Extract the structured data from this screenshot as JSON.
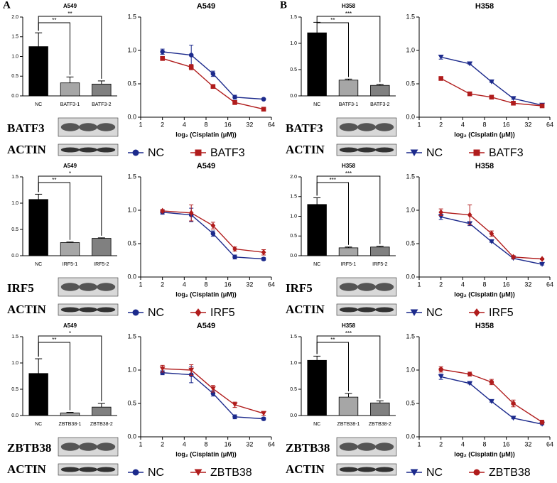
{
  "panel_labels": [
    "A",
    "B"
  ],
  "blots": [
    [
      "BATF3",
      "ACTIN"
    ],
    [
      "IRF5",
      "ACTIN"
    ],
    [
      "ZBTB38",
      "ACTIN"
    ],
    [
      "BATF3",
      "ACTIN"
    ],
    [
      "IRF5",
      "ACTIN"
    ],
    [
      "ZBTB38",
      "ACTIN"
    ]
  ],
  "chart_data": [
    {
      "type": "bar",
      "title": "A549",
      "categories": [
        "NC",
        "BATF3-1",
        "BATF3-2"
      ],
      "values": [
        1.25,
        0.33,
        0.3
      ],
      "errors": [
        0.35,
        0.15,
        0.08
      ],
      "colors": [
        "#000000",
        "#a6a6a6",
        "#808080"
      ],
      "significance": [
        "**",
        "**"
      ],
      "ylim": [
        0,
        2
      ],
      "yticks": [
        {
          "value": 0,
          "label": "0.0"
        },
        0.5,
        {
          "value": 1,
          "label": "1.0"
        },
        1.5,
        {
          "value": 2,
          "label": "2.0"
        }
      ]
    },
    {
      "type": "line",
      "title": "A549",
      "xlabel": "log₂ (Cisplatin (μM))",
      "x": [
        2,
        5,
        10,
        20,
        50
      ],
      "log_base": 2,
      "xlim": [
        1,
        64
      ],
      "xticks": [
        1,
        2,
        4,
        8,
        16,
        32,
        64
      ],
      "ylim": [
        0,
        1.5
      ],
      "yticks": [
        {
          "value": 0,
          "label": "0.0"
        },
        0.5,
        {
          "value": 1,
          "label": "1.0"
        },
        1.5
      ],
      "series": [
        {
          "name": "NC",
          "color": "#1c2a8c",
          "marker": "circle",
          "values": [
            0.98,
            0.93,
            0.65,
            0.3,
            0.27
          ],
          "errors": [
            0.04,
            0.15,
            0.04,
            0.03,
            0.01
          ]
        },
        {
          "name": "BATF3",
          "color": "#b01c1c",
          "marker": "square",
          "values": [
            0.88,
            0.75,
            0.46,
            0.22,
            0.12
          ],
          "errors": [
            0.03,
            0.04,
            0.02,
            0.03,
            0.01
          ]
        }
      ]
    },
    {
      "type": "bar",
      "title": "A549",
      "categories": [
        "NC",
        "IRF5-1",
        "IRF5-2"
      ],
      "values": [
        1.07,
        0.25,
        0.33
      ],
      "errors": [
        0.1,
        0.01,
        0.01
      ],
      "colors": [
        "#000000",
        "#a6a6a6",
        "#808080"
      ],
      "significance": [
        "**",
        "*"
      ],
      "ylim": [
        0,
        1.5
      ],
      "yticks": [
        {
          "value": 0,
          "label": "0.0"
        },
        0.5,
        {
          "value": 1,
          "label": "1.0"
        },
        1.5
      ]
    },
    {
      "type": "line",
      "title": "A549",
      "xlabel": "log₂ (Cisplatin (μM))",
      "x": [
        2,
        5,
        10,
        20,
        50
      ],
      "log_base": 2,
      "xlim": [
        1,
        64
      ],
      "xticks": [
        1,
        2,
        4,
        8,
        16,
        32,
        64
      ],
      "ylim": [
        0,
        1.5
      ],
      "yticks": [
        {
          "value": 0,
          "label": "0.0"
        },
        0.5,
        {
          "value": 1,
          "label": "1.0"
        },
        1.5
      ],
      "series": [
        {
          "name": "NC",
          "color": "#1c2a8c",
          "marker": "circle",
          "values": [
            0.97,
            0.93,
            0.65,
            0.3,
            0.27
          ],
          "errors": [
            0.03,
            0.1,
            0.04,
            0.03,
            0.02
          ]
        },
        {
          "name": "IRF5",
          "color": "#b01c1c",
          "marker": "diamond",
          "values": [
            0.99,
            0.96,
            0.77,
            0.42,
            0.37
          ],
          "errors": [
            0.02,
            0.12,
            0.05,
            0.03,
            0.04
          ]
        }
      ]
    },
    {
      "type": "bar",
      "title": "A549",
      "categories": [
        "NC",
        "ZBTB38-1",
        "ZBTB38-2"
      ],
      "values": [
        0.8,
        0.05,
        0.16
      ],
      "errors": [
        0.28,
        0.01,
        0.07
      ],
      "colors": [
        "#000000",
        "#a6a6a6",
        "#808080"
      ],
      "significance": [
        "**",
        "*"
      ],
      "ylim": [
        0,
        1.5
      ],
      "yticks": [
        {
          "value": 0,
          "label": "0.0"
        },
        0.5,
        {
          "value": 1,
          "label": "1.0"
        },
        1.5
      ]
    },
    {
      "type": "line",
      "title": "A549",
      "xlabel": "log₂ (Cisplatin (μM))",
      "x": [
        2,
        5,
        10,
        20,
        50
      ],
      "log_base": 2,
      "xlim": [
        1,
        64
      ],
      "xticks": [
        1,
        2,
        4,
        8,
        16,
        32,
        64
      ],
      "ylim": [
        0,
        1.5
      ],
      "yticks": [
        {
          "value": 0,
          "label": "0.0"
        },
        0.5,
        {
          "value": 1,
          "label": "1.0"
        },
        1.5
      ],
      "series": [
        {
          "name": "NC",
          "color": "#1c2a8c",
          "marker": "circle",
          "values": [
            0.96,
            0.93,
            0.65,
            0.3,
            0.27
          ],
          "errors": [
            0.03,
            0.12,
            0.04,
            0.03,
            0.02
          ]
        },
        {
          "name": "ZBTB38",
          "color": "#b01c1c",
          "marker": "triangle-down",
          "values": [
            1.02,
            1.0,
            0.72,
            0.48,
            0.35
          ],
          "errors": [
            0.05,
            0.08,
            0.05,
            0.04,
            0.03
          ]
        }
      ]
    },
    {
      "type": "bar",
      "title": "H358",
      "categories": [
        "NC",
        "BATF3-1",
        "BATF3-2"
      ],
      "values": [
        1.2,
        0.3,
        0.2
      ],
      "errors": [
        0.2,
        0.02,
        0.02
      ],
      "colors": [
        "#000000",
        "#a6a6a6",
        "#808080"
      ],
      "significance": [
        "**",
        "***"
      ],
      "ylim": [
        0,
        1.5
      ],
      "yticks": [
        {
          "value": 0,
          "label": "0.0"
        },
        0.5,
        {
          "value": 1,
          "label": "1.0"
        },
        1.5
      ]
    },
    {
      "type": "line",
      "title": "H358",
      "xlabel": "log₂ (Cisplatin (μM))",
      "x": [
        2,
        5,
        10,
        20,
        50
      ],
      "log_base": 2,
      "xlim": [
        1,
        64
      ],
      "xticks": [
        1,
        2,
        4,
        8,
        16,
        32,
        64
      ],
      "ylim": [
        0,
        1.5
      ],
      "yticks": [
        {
          "value": 0,
          "label": "0.0"
        },
        0.5,
        {
          "value": 1,
          "label": "1.0"
        },
        1.5
      ],
      "series": [
        {
          "name": "NC",
          "color": "#1c2a8c",
          "marker": "triangle-down",
          "values": [
            0.9,
            0.8,
            0.53,
            0.28,
            0.18
          ],
          "errors": [
            0.03,
            0.01,
            0.01,
            0.01,
            0.01
          ]
        },
        {
          "name": "BATF3",
          "color": "#b01c1c",
          "marker": "square",
          "values": [
            0.58,
            0.35,
            0.3,
            0.21,
            0.17
          ],
          "errors": [
            0.02,
            0.01,
            0.01,
            0.01,
            0.01
          ]
        }
      ]
    },
    {
      "type": "bar",
      "title": "H358",
      "categories": [
        "NC",
        "IRF5-1",
        "IRF5-2"
      ],
      "values": [
        1.3,
        0.2,
        0.22
      ],
      "errors": [
        0.17,
        0.02,
        0.02
      ],
      "colors": [
        "#000000",
        "#a6a6a6",
        "#808080"
      ],
      "significance": [
        "***",
        "***"
      ],
      "ylim": [
        0,
        2
      ],
      "yticks": [
        {
          "value": 0,
          "label": "0.0"
        },
        0.5,
        {
          "value": 1,
          "label": "1.0"
        },
        1.5,
        {
          "value": 2,
          "label": "2.0"
        }
      ]
    },
    {
      "type": "line",
      "title": "H358",
      "xlabel": "log₂ (Cisplatin (μM))",
      "x": [
        2,
        5,
        10,
        20,
        50
      ],
      "log_base": 2,
      "xlim": [
        1,
        64
      ],
      "xticks": [
        1,
        2,
        4,
        8,
        16,
        32,
        64
      ],
      "ylim": [
        0,
        1.5
      ],
      "yticks": [
        {
          "value": 0,
          "label": "0.0"
        },
        0.5,
        {
          "value": 1,
          "label": "1.0"
        },
        1.5
      ],
      "series": [
        {
          "name": "NC",
          "color": "#1c2a8c",
          "marker": "triangle-down",
          "values": [
            0.9,
            0.8,
            0.53,
            0.28,
            0.19
          ],
          "errors": [
            0.04,
            0.03,
            0.01,
            0.01,
            0.01
          ]
        },
        {
          "name": "IRF5",
          "color": "#b01c1c",
          "marker": "diamond",
          "values": [
            0.97,
            0.93,
            0.65,
            0.3,
            0.27
          ],
          "errors": [
            0.05,
            0.15,
            0.04,
            0.02,
            0.01
          ]
        }
      ]
    },
    {
      "type": "bar",
      "title": "H358",
      "categories": [
        "NC",
        "ZBTB38-1",
        "ZBTB38-2"
      ],
      "values": [
        1.05,
        0.35,
        0.24
      ],
      "errors": [
        0.08,
        0.07,
        0.04
      ],
      "colors": [
        "#000000",
        "#a6a6a6",
        "#808080"
      ],
      "significance": [
        "**",
        "***"
      ],
      "ylim": [
        0,
        1.5
      ],
      "yticks": [
        {
          "value": 0,
          "label": "0.0"
        },
        0.5,
        {
          "value": 1,
          "label": "1.0"
        },
        1.5
      ]
    },
    {
      "type": "line",
      "title": "H358",
      "xlabel": "log₂ (Cisplatin (μM))",
      "x": [
        2,
        5,
        10,
        20,
        50
      ],
      "log_base": 2,
      "xlim": [
        1,
        64
      ],
      "xticks": [
        1,
        2,
        4,
        8,
        16,
        32,
        64
      ],
      "ylim": [
        0,
        1.5
      ],
      "yticks": [
        {
          "value": 0,
          "label": "0.0"
        },
        0.5,
        {
          "value": 1,
          "label": "1.0"
        },
        1.5
      ],
      "series": [
        {
          "name": "NC",
          "color": "#1c2a8c",
          "marker": "triangle-down",
          "values": [
            0.9,
            0.8,
            0.53,
            0.28,
            0.19
          ],
          "errors": [
            0.04,
            0.01,
            0.01,
            0.01,
            0.01
          ]
        },
        {
          "name": "ZBTB38",
          "color": "#b01c1c",
          "marker": "circle",
          "values": [
            1.01,
            0.94,
            0.82,
            0.5,
            0.22
          ],
          "errors": [
            0.04,
            0.03,
            0.04,
            0.05,
            0.03
          ]
        }
      ]
    }
  ]
}
